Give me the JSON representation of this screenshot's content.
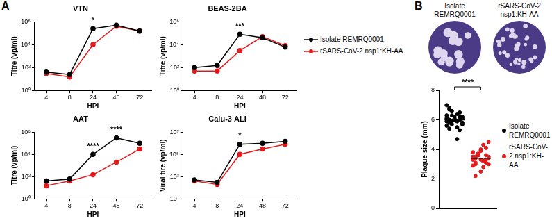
{
  "panel_labels": [
    "A",
    "B"
  ],
  "chart_data": [
    {
      "type": "line",
      "title": "VTN",
      "xlabel": "HPI",
      "ylabel": "Titre (vp/ml)",
      "log": "y",
      "grid": false,
      "categories": [
        "4",
        "8",
        "24",
        "48",
        "72"
      ],
      "ylim": [
        1,
        1000000
      ],
      "yticks": [
        {
          "value": 1,
          "label": "10⁰"
        },
        {
          "value": 100,
          "label": "10²"
        },
        {
          "value": 10000,
          "label": "10⁴"
        },
        {
          "value": 1000000,
          "label": "10⁶"
        }
      ],
      "series": [
        {
          "name": "Isolate REMRQ0001",
          "color": "#000000",
          "marker": "circle",
          "values": [
            40,
            25,
            250000,
            500000,
            150000
          ]
        },
        {
          "name": "rSARS-CoV-2 nsp1:KH-AA",
          "color": "#e31a1c",
          "marker": "circle",
          "values": [
            30,
            15,
            10000,
            400000,
            150000
          ]
        }
      ],
      "annotations": [
        {
          "x": "24",
          "text": "*"
        }
      ]
    },
    {
      "type": "line",
      "title": "BEAS-2BA",
      "xlabel": "HPI",
      "ylabel": "Titre (vp/ml)",
      "log": "y",
      "grid": false,
      "legend": "right",
      "categories": [
        "4",
        "8",
        "24",
        "48",
        "72"
      ],
      "ylim": [
        1,
        1000000
      ],
      "yticks": [
        {
          "value": 1,
          "label": "10⁰"
        },
        {
          "value": 100,
          "label": "10²"
        },
        {
          "value": 10000,
          "label": "10⁴"
        },
        {
          "value": 1000000,
          "label": "10⁶"
        }
      ],
      "series": [
        {
          "name": "Isolate REMRQ0001",
          "color": "#000000",
          "marker": "circle",
          "values": [
            100,
            150,
            80000,
            40000,
            6000
          ]
        },
        {
          "name": "rSARS-CoV-2 nsp1:KH-AA",
          "color": "#e31a1c",
          "marker": "circle",
          "values": [
            50,
            50,
            3000,
            50000,
            8000
          ]
        }
      ],
      "annotations": [
        {
          "x": "24",
          "text": "***"
        }
      ]
    },
    {
      "type": "line",
      "title": "AAT",
      "xlabel": "HPI",
      "ylabel": "Titre (vp/ml)",
      "log": "y",
      "grid": false,
      "categories": [
        "4",
        "8",
        "24",
        "48",
        "72"
      ],
      "ylim": [
        1,
        1000000
      ],
      "yticks": [
        {
          "value": 1,
          "label": "10⁰"
        },
        {
          "value": 100,
          "label": "10²"
        },
        {
          "value": 10000,
          "label": "10⁴"
        },
        {
          "value": 1000000,
          "label": "10⁶"
        }
      ],
      "series": [
        {
          "name": "Isolate REMRQ0001",
          "color": "#000000",
          "marker": "circle",
          "values": [
            40,
            60,
            10000,
            300000,
            100000
          ]
        },
        {
          "name": "rSARS-CoV-2 nsp1:KH-AA",
          "color": "#e31a1c",
          "marker": "circle",
          "values": [
            15,
            40,
            150,
            2000,
            30000
          ]
        }
      ],
      "annotations": [
        {
          "x": "24",
          "text": "****"
        },
        {
          "x": "48",
          "text": "****"
        }
      ]
    },
    {
      "type": "line",
      "title": "Calu-3 ALI",
      "xlabel": "HPI",
      "ylabel": "Viral tire (vp/ml)",
      "log": "y",
      "grid": false,
      "categories": [
        "4",
        "8",
        "24",
        "48",
        "72"
      ],
      "ylim": [
        10,
        10000000
      ],
      "yticks": [
        {
          "value": 10,
          "label": "10¹"
        },
        {
          "value": 1000,
          "label": "10³"
        },
        {
          "value": 100000,
          "label": "10⁵"
        },
        {
          "value": 10000000,
          "label": "10⁷"
        }
      ],
      "series": [
        {
          "name": "Isolate REMRQ0001",
          "color": "#000000",
          "marker": "circle",
          "values": [
            500,
            300,
            800000,
            1000000,
            1500000
          ]
        },
        {
          "name": "rSARS-CoV-2 nsp1:KH-AA",
          "color": "#e31a1c",
          "marker": "circle",
          "values": [
            400,
            200,
            100000,
            300000,
            800000
          ]
        }
      ],
      "annotations": [
        {
          "x": "24",
          "text": "*"
        }
      ]
    },
    {
      "type": "scatter",
      "ylabel": "Plaque size (mm)",
      "grid": false,
      "legend": "right",
      "tick_labels": "y",
      "ylim": [
        0,
        8
      ],
      "yticks": [
        0,
        2,
        4,
        6,
        8
      ],
      "series": [
        {
          "name": "Isolate REMRQ0001",
          "color": "#000000",
          "marker": "circle",
          "mean": 6.0,
          "values": [
            6.1,
            5.8,
            6.3,
            6.0,
            5.5,
            6.5,
            6.2,
            5.9,
            6.7,
            5.7,
            6.0,
            6.4,
            5.3,
            6.1,
            5.6,
            6.8,
            5.9,
            6.2,
            4.7,
            6.0,
            5.8,
            6.3,
            5.4,
            6.6,
            6.1,
            5.9,
            6.2,
            5.7,
            7.0,
            6.0
          ]
        },
        {
          "name": "rSARS-CoV-2 nsp1:KH-AA",
          "color": "#e31a1c",
          "marker": "circle",
          "mean": 3.4,
          "values": [
            3.4,
            3.1,
            3.6,
            3.9,
            2.8,
            3.3,
            4.5,
            3.5,
            3.0,
            3.7,
            2.5,
            3.2,
            4.1,
            3.4,
            3.8,
            2.2,
            3.6,
            3.3,
            4.3,
            3.1,
            3.5,
            2.9,
            3.4,
            3.7,
            4.0,
            3.2,
            3.6,
            3.0,
            3.3,
            3.5
          ]
        }
      ],
      "annotations": [
        {
          "text": "****"
        }
      ]
    }
  ],
  "plaque_images": [
    {
      "title": "Isolate REMRQ0001"
    },
    {
      "title": "rSARS-CoV-2 nsp1:KH-AA"
    }
  ]
}
